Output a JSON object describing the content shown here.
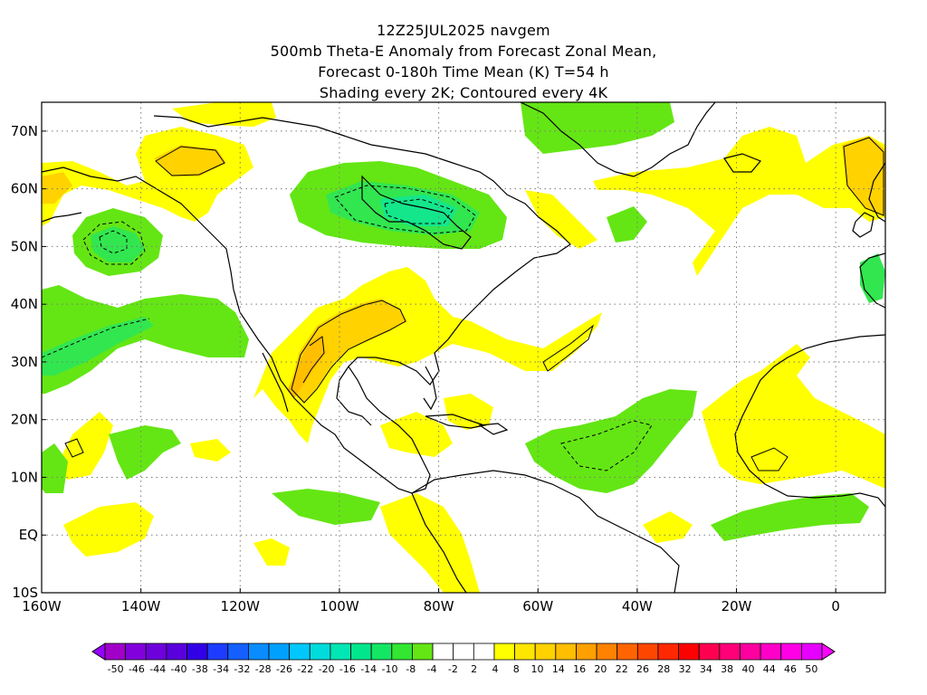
{
  "title": {
    "line1": "12Z25JUL2025 navgem",
    "line2": "500mb Theta-E Anomaly from Forecast Zonal Mean,",
    "line3": "Forecast 0-180h Time Mean (K) T=54 h",
    "line4": "Shading every 2K; Contoured every 4K"
  },
  "map": {
    "projection": "lat-lon",
    "lon_range": [
      -160,
      10
    ],
    "lat_range": [
      -10,
      75
    ],
    "grid": "dotted",
    "lat_labels": [
      "70N",
      "60N",
      "50N",
      "40N",
      "30N",
      "20N",
      "10N",
      "EQ",
      "10S"
    ],
    "lat_values": [
      70,
      60,
      50,
      40,
      30,
      20,
      10,
      0,
      -10
    ],
    "lon_labels": [
      "160W",
      "140W",
      "120W",
      "100W",
      "80W",
      "60W",
      "40W",
      "20W",
      "0"
    ],
    "lon_values": [
      -160,
      -140,
      -120,
      -100,
      -80,
      -60,
      -40,
      -20,
      0
    ]
  },
  "colorbar": {
    "labels": [
      "-50",
      "-46",
      "-44",
      "-40",
      "-38",
      "-34",
      "-32",
      "-28",
      "-26",
      "-22",
      "-20",
      "-16",
      "-14",
      "-10",
      "-8",
      "-4",
      "-2",
      "2",
      "4",
      "8",
      "10",
      "14",
      "16",
      "20",
      "22",
      "26",
      "28",
      "32",
      "34",
      "38",
      "40",
      "44",
      "46",
      "50"
    ],
    "colors": [
      "#a000c8",
      "#8200dc",
      "#6e00dc",
      "#5a00dc",
      "#3200e6",
      "#1e3cff",
      "#1460ff",
      "#0a8cff",
      "#00a0ff",
      "#00c8ff",
      "#00dcdc",
      "#00e6b4",
      "#00e68c",
      "#14e664",
      "#32e632",
      "#64e614",
      "#ffffff",
      "#ffffff",
      "#ffffff",
      "#ffff00",
      "#ffe600",
      "#ffd200",
      "#ffbe00",
      "#ffa000",
      "#ff8200",
      "#ff6400",
      "#ff4600",
      "#ff2800",
      "#ff0000",
      "#ff0050",
      "#ff0078",
      "#ff00a0",
      "#ff00c8",
      "#ff00e6",
      "#e600ff"
    ]
  },
  "colors": {
    "positive_anomaly": "#ffff00",
    "positive_anomaly_strong": "#ffd200",
    "positive_anomaly_max": "#ffa000",
    "negative_anomaly": "#64e614",
    "negative_anomaly_strong": "#32e650",
    "negative_anomaly_max": "#14e68c",
    "coastline": "#000000"
  }
}
